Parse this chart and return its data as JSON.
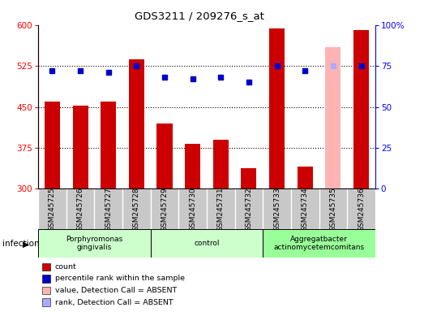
{
  "title": "GDS3211 / 209276_s_at",
  "samples": [
    "GSM245725",
    "GSM245726",
    "GSM245727",
    "GSM245728",
    "GSM245729",
    "GSM245730",
    "GSM245731",
    "GSM245732",
    "GSM245733",
    "GSM245734",
    "GSM245735",
    "GSM245736"
  ],
  "count_values": [
    460,
    452,
    460,
    537,
    420,
    382,
    390,
    338,
    593,
    340,
    560,
    591
  ],
  "percentile_values": [
    72,
    72,
    71,
    75,
    68,
    67,
    68,
    65,
    75,
    72,
    75,
    75
  ],
  "absent_mask": [
    false,
    false,
    false,
    false,
    false,
    false,
    false,
    false,
    false,
    false,
    true,
    false
  ],
  "absent_rank_mask": [
    false,
    false,
    false,
    false,
    false,
    false,
    false,
    false,
    false,
    false,
    true,
    false
  ],
  "ylim_left": [
    300,
    600
  ],
  "ylim_right": [
    0,
    100
  ],
  "yticks_left": [
    300,
    375,
    450,
    525,
    600
  ],
  "yticks_right": [
    0,
    25,
    50,
    75,
    100
  ],
  "bar_color": "#cc0000",
  "bar_color_absent": "#ffb3b3",
  "dot_color": "#0000cc",
  "dot_color_absent": "#aaaaff",
  "groups": [
    {
      "label": "Porphyromonas\ngingivalis",
      "start": 0,
      "end": 4,
      "color": "#ccffcc"
    },
    {
      "label": "control",
      "start": 4,
      "end": 8,
      "color": "#ccffcc"
    },
    {
      "label": "Aggregatbacter\nactinomycetemcomitans",
      "start": 8,
      "end": 12,
      "color": "#99ff99"
    }
  ],
  "infection_label": "infection",
  "bar_width": 0.55,
  "bg_color": "#c8c8c8"
}
